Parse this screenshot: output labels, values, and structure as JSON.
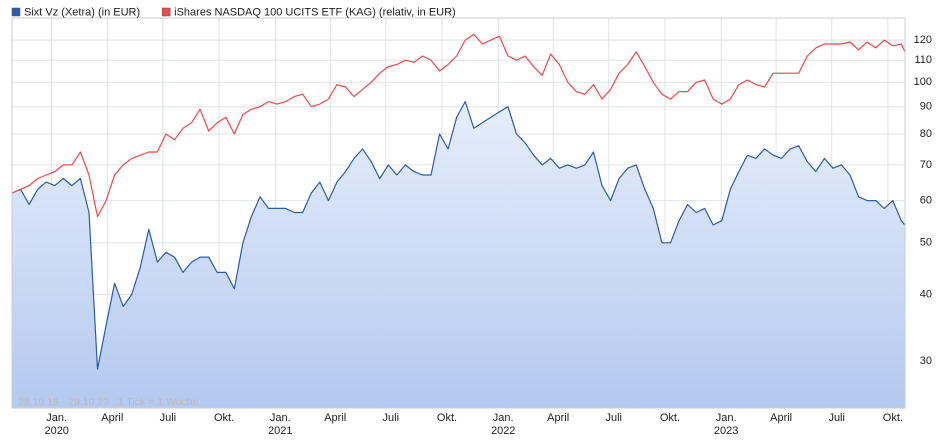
{
  "chart_data": {
    "type": "line",
    "note": "28.10.19 - 29.10.23   1 Tick = 1 Woche",
    "x": [
      "2019-10-28",
      "2019-11-11",
      "2019-11-25",
      "2019-12-09",
      "2019-12-23",
      "2020-01-06",
      "2020-01-20",
      "2020-02-03",
      "2020-02-17",
      "2020-03-02",
      "2020-03-16",
      "2020-03-30",
      "2020-04-13",
      "2020-04-27",
      "2020-05-11",
      "2020-05-25",
      "2020-06-08",
      "2020-06-22",
      "2020-07-06",
      "2020-07-20",
      "2020-08-03",
      "2020-08-17",
      "2020-08-31",
      "2020-09-14",
      "2020-09-28",
      "2020-10-12",
      "2020-10-26",
      "2020-11-09",
      "2020-11-23",
      "2020-12-07",
      "2020-12-21",
      "2021-01-04",
      "2021-01-18",
      "2021-02-01",
      "2021-02-15",
      "2021-03-01",
      "2021-03-15",
      "2021-03-29",
      "2021-04-12",
      "2021-04-26",
      "2021-05-10",
      "2021-05-24",
      "2021-06-07",
      "2021-06-21",
      "2021-07-05",
      "2021-07-19",
      "2021-08-02",
      "2021-08-16",
      "2021-08-30",
      "2021-09-13",
      "2021-09-27",
      "2021-10-11",
      "2021-10-25",
      "2021-11-08",
      "2021-11-22",
      "2021-12-06",
      "2021-12-20",
      "2022-01-03",
      "2022-01-17",
      "2022-01-31",
      "2022-02-14",
      "2022-02-28",
      "2022-03-14",
      "2022-03-28",
      "2022-04-11",
      "2022-04-25",
      "2022-05-09",
      "2022-05-23",
      "2022-06-06",
      "2022-06-20",
      "2022-07-04",
      "2022-07-18",
      "2022-08-01",
      "2022-08-15",
      "2022-08-29",
      "2022-09-12",
      "2022-09-26",
      "2022-10-10",
      "2022-10-24",
      "2022-11-07",
      "2022-11-21",
      "2022-12-05",
      "2022-12-19",
      "2023-01-02",
      "2023-01-16",
      "2023-01-30",
      "2023-02-13",
      "2023-02-27",
      "2023-03-13",
      "2023-03-27",
      "2023-04-10",
      "2023-04-24",
      "2023-05-08",
      "2023-05-22",
      "2023-06-05",
      "2023-06-19",
      "2023-07-03",
      "2023-07-17",
      "2023-07-31",
      "2023-08-14",
      "2023-08-28",
      "2023-09-11",
      "2023-09-25",
      "2023-10-09",
      "2023-10-23",
      "2023-10-29"
    ],
    "series": [
      {
        "name": "Sixt Vz (Xetra) (in EUR)",
        "color": "#2a5caa",
        "fill": true,
        "values": [
          62,
          63,
          59,
          63,
          65,
          64,
          66,
          64,
          66,
          57,
          29,
          35,
          42,
          38,
          40,
          45,
          53,
          46,
          48,
          47,
          44,
          46,
          47,
          47,
          44,
          44,
          41,
          50,
          56,
          61,
          58,
          58,
          58,
          57,
          57,
          62,
          65,
          60,
          65,
          68,
          72,
          75,
          71,
          66,
          70,
          67,
          70,
          68,
          67,
          67,
          80,
          75,
          86,
          92,
          82,
          84,
          86,
          88,
          90,
          80,
          77,
          73,
          70,
          72,
          69,
          70,
          69,
          70,
          74,
          64,
          60,
          66,
          69,
          70,
          63,
          58,
          50,
          50,
          55,
          59,
          57,
          58,
          54,
          55,
          63,
          68,
          73,
          72,
          75,
          73,
          72,
          75,
          76,
          71,
          68,
          72,
          69,
          70,
          67,
          61,
          60,
          60,
          58,
          60,
          55,
          54
        ]
      },
      {
        "name": "iShares NASDAQ 100 UCITS ETF (KAG) (relativ, in EUR)",
        "color": "#f0484a",
        "fill": false,
        "values": [
          62,
          63,
          64,
          66,
          67,
          68,
          70,
          70,
          74,
          67,
          56,
          60,
          67,
          70,
          72,
          73,
          74,
          74,
          80,
          78,
          82,
          84,
          89,
          81,
          84,
          86,
          80,
          87,
          89,
          90,
          92,
          91,
          92,
          94,
          95,
          90,
          91,
          93,
          99,
          98,
          94,
          97,
          100,
          104,
          107,
          108,
          110,
          109,
          112,
          110,
          105,
          108,
          112,
          120,
          123,
          118,
          120,
          122,
          112,
          110,
          112,
          107,
          103,
          113,
          108,
          100,
          96,
          95,
          99,
          93,
          97,
          104,
          108,
          114,
          107,
          100,
          95,
          93,
          96,
          96,
          100,
          101,
          93,
          91,
          93,
          99,
          101,
          99,
          98,
          104,
          104,
          104,
          104,
          112,
          116,
          118,
          118,
          118,
          119,
          115,
          119,
          116,
          120,
          117,
          118,
          114
        ]
      }
    ],
    "xlim": [
      "2019-10-28",
      "2023-10-29"
    ],
    "xticks": [
      {
        "value": "2020-01-01",
        "label": "Jan.",
        "sublabel": "2020"
      },
      {
        "value": "2020-04-01",
        "label": "April"
      },
      {
        "value": "2020-07-01",
        "label": "Juli"
      },
      {
        "value": "2020-10-01",
        "label": "Okt."
      },
      {
        "value": "2021-01-01",
        "label": "Jan.",
        "sublabel": "2021"
      },
      {
        "value": "2021-04-01",
        "label": "April"
      },
      {
        "value": "2021-07-01",
        "label": "Juli"
      },
      {
        "value": "2021-10-01",
        "label": "Okt."
      },
      {
        "value": "2022-01-01",
        "label": "Jan.",
        "sublabel": "2022"
      },
      {
        "value": "2022-04-01",
        "label": "April"
      },
      {
        "value": "2022-07-01",
        "label": "Juli"
      },
      {
        "value": "2022-10-01",
        "label": "Okt."
      },
      {
        "value": "2023-01-01",
        "label": "Jan.",
        "sublabel": "2023"
      },
      {
        "value": "2023-04-01",
        "label": "April"
      },
      {
        "value": "2023-07-01",
        "label": "Juli"
      },
      {
        "value": "2023-10-01",
        "label": "Okt."
      }
    ],
    "ylim": [
      24.5,
      132
    ],
    "yticks": [
      30,
      40,
      50,
      60,
      70,
      80,
      90,
      100,
      110,
      120
    ],
    "log_y": true,
    "grid": true,
    "legend": "top"
  }
}
